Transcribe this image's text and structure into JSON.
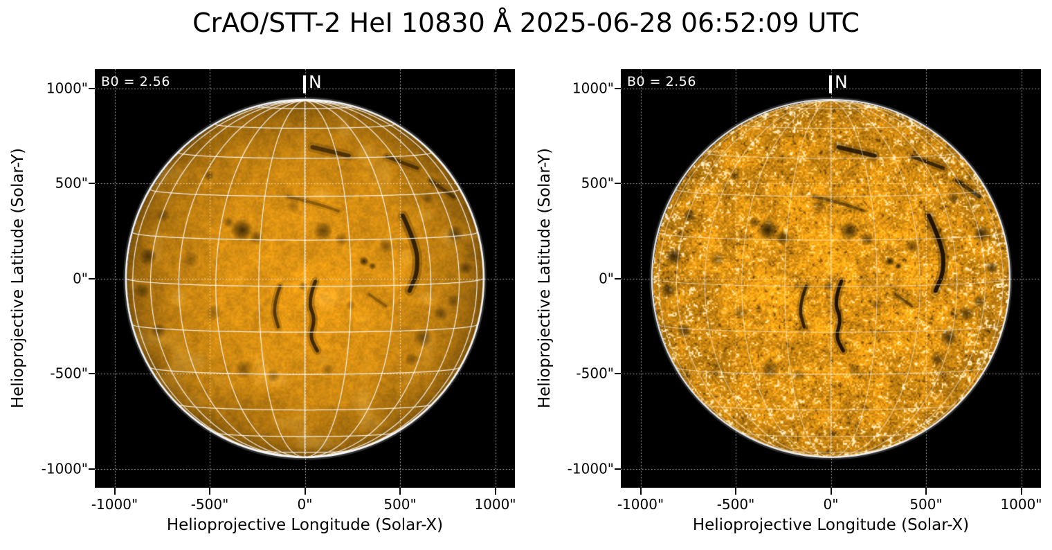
{
  "title": "CrAO/STT-2 HeI 10830 Å 2025-06-28 06:52:09 UTC",
  "colors": {
    "page_background": "#ffffff",
    "panel_background": "#000000",
    "disk_base": "#e89a14",
    "dark_feature": "#2a1c04",
    "speckle_white": "#fff6d6",
    "grid_line": "#ffffff",
    "axis_text": "#000000",
    "overlay_text": "#ffffff"
  },
  "chart_data": {
    "type": "heatmap",
    "description": "Two full-disk solar images in HeI 10830 A on black background with white heliographic grid overlay; left panel smoothed, right panel high-contrast/noisy version of the same disk.",
    "title": "CrAO/STT-2 HeI 10830 Å 2025-06-28 06:52:09 UTC",
    "xlabel": "Helioprojective Longitude (Solar-X)",
    "ylabel": "Helioprojective Latitude (Solar-Y)",
    "xlim": [
      -1105,
      1105
    ],
    "ylim": [
      -1105,
      1105
    ],
    "x_tick_values": [
      -1000,
      -500,
      0,
      500,
      1000
    ],
    "x_tick_labels": [
      "-1000\"",
      "-500\"",
      "0\"",
      "500\"",
      "1000\""
    ],
    "y_tick_values": [
      1000,
      500,
      0,
      -500,
      -1000
    ],
    "y_tick_labels": [
      "1000\"",
      "500\"",
      "0\"",
      "-500\"",
      "-1000\""
    ],
    "grid": "dotted helioprojective grid every 500 arcsec; solid heliographic grid every 15 deg",
    "solar_radius_arcsec": 937,
    "b0_deg": 2.56,
    "heliographic_grid_step_deg": 15,
    "panels": [
      {
        "name": "smoothed",
        "annotation": "B0 = 2.56",
        "north_marker": "N"
      },
      {
        "name": "high-contrast",
        "annotation": "B0 = 2.56",
        "north_marker": "N"
      }
    ],
    "features": {
      "comment": "dark chromospheric features; blobs: [x_arcsec, y_arcsec, radius_arcsec, strength]; streaks: [x1,y1,x2,y2,width_px,strength]",
      "blobs": [
        [
          -330,
          255,
          60,
          0.8
        ],
        [
          -255,
          215,
          38,
          0.55
        ],
        [
          -400,
          295,
          30,
          0.45
        ],
        [
          95,
          250,
          52,
          0.6
        ],
        [
          190,
          205,
          36,
          0.45
        ],
        [
          310,
          90,
          26,
          0.85
        ],
        [
          355,
          65,
          20,
          0.7
        ],
        [
          425,
          170,
          40,
          0.45
        ],
        [
          -505,
          540,
          28,
          0.5
        ],
        [
          -10,
          -40,
          26,
          0.45
        ],
        [
          -320,
          -475,
          52,
          0.45
        ],
        [
          -165,
          -510,
          36,
          0.35
        ],
        [
          620,
          -310,
          52,
          0.55
        ],
        [
          715,
          -185,
          40,
          0.5
        ],
        [
          560,
          -425,
          36,
          0.45
        ],
        [
          790,
          235,
          46,
          0.6
        ],
        [
          845,
          55,
          36,
          0.55
        ],
        [
          780,
          -120,
          36,
          0.45
        ],
        [
          -825,
          115,
          48,
          0.65
        ],
        [
          -855,
          -65,
          42,
          0.55
        ],
        [
          -770,
          -275,
          42,
          0.5
        ],
        [
          -745,
          330,
          36,
          0.45
        ],
        [
          240,
          -140,
          28,
          0.4
        ],
        [
          645,
          420,
          32,
          0.45
        ],
        [
          -60,
          380,
          40,
          0.3
        ],
        [
          120,
          -480,
          36,
          0.35
        ],
        [
          -480,
          -180,
          40,
          0.3
        ],
        [
          -600,
          100,
          45,
          0.35
        ]
      ],
      "streaks": [
        [
          40,
          690,
          230,
          645,
          6,
          0.6
        ],
        [
          430,
          640,
          590,
          580,
          5,
          0.55
        ],
        [
          660,
          515,
          780,
          430,
          5,
          0.5
        ]
      ],
      "filaments": [
        {
          "points": [
            [
              55,
              -15
            ],
            [
              15,
              -120
            ],
            [
              55,
              -215
            ],
            [
              25,
              -305
            ],
            [
              65,
              -380
            ]
          ],
          "width": 5,
          "strength": 0.75
        },
        {
          "points": [
            [
              -130,
              -40
            ],
            [
              -170,
              -150
            ],
            [
              -140,
              -255
            ]
          ],
          "width": 4.5,
          "strength": 0.6
        },
        {
          "points": [
            [
              515,
              330
            ],
            [
              585,
              180
            ],
            [
              595,
              40
            ],
            [
              550,
              -65
            ]
          ],
          "width": 6,
          "strength": 0.8
        },
        {
          "points": [
            [
              -90,
              430
            ],
            [
              60,
              395
            ],
            [
              175,
              355
            ]
          ],
          "width": 4,
          "strength": 0.35
        },
        {
          "points": [
            [
              340,
              -85
            ],
            [
              425,
              -145
            ]
          ],
          "width": 4,
          "strength": 0.35
        }
      ]
    }
  }
}
